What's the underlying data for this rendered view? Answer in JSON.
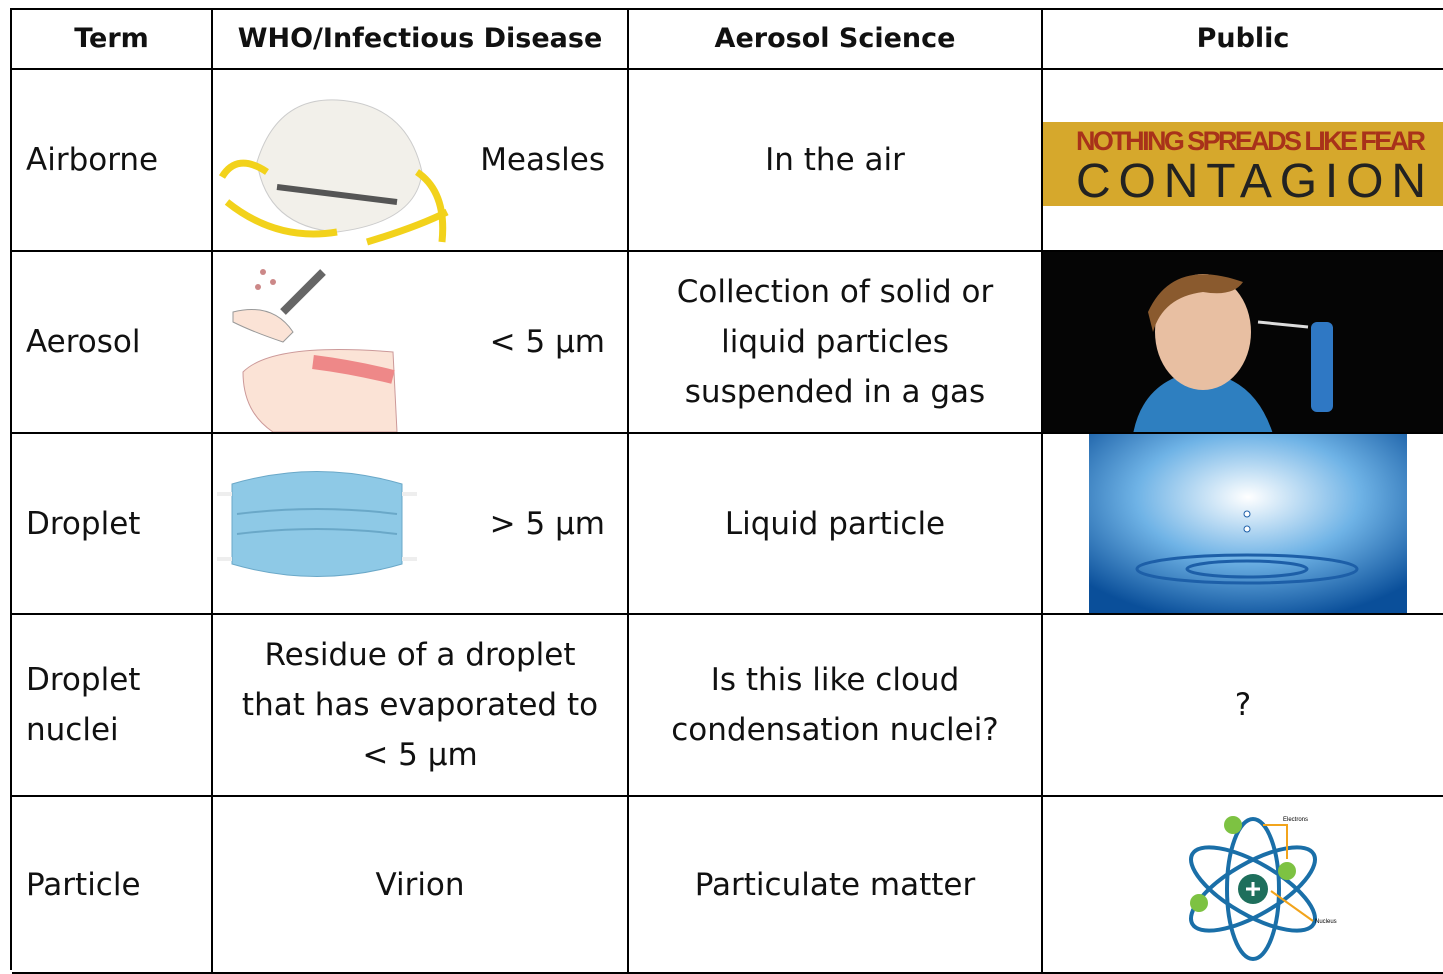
{
  "table": {
    "header": [
      "Term",
      "WHO/Infectious Disease",
      "Aerosol Science",
      "Public"
    ],
    "rows": [
      {
        "term": [
          "Airborne"
        ],
        "who": [
          "Measles"
        ],
        "aerosol": [
          "In the air"
        ],
        "public": {
          "tagline": "NOTHING SPREADS LIKE FEAR",
          "title": "CONTAGION"
        }
      },
      {
        "term": [
          "Aerosol"
        ],
        "who": [
          "< 5 µm"
        ],
        "aerosol": [
          "Collection of solid or",
          "liquid particles",
          "suspended in a gas"
        ]
      },
      {
        "term": [
          "Droplet"
        ],
        "who": [
          "> 5 µm"
        ],
        "aerosol": [
          "Liquid particle"
        ]
      },
      {
        "term": [
          "Droplet",
          "nuclei"
        ],
        "who": [
          "Residue of a droplet",
          "that has evaporated to",
          "< 5 µm"
        ],
        "aerosol": [
          "Is this like cloud",
          "condensation nuclei?"
        ],
        "public": {
          "text": "?"
        }
      },
      {
        "term": [
          "Particle"
        ],
        "who": [
          "Virion"
        ],
        "aerosol": [
          "Particulate matter"
        ],
        "public": {
          "labels": [
            "Electrons",
            "Nucleus"
          ]
        }
      }
    ]
  }
}
